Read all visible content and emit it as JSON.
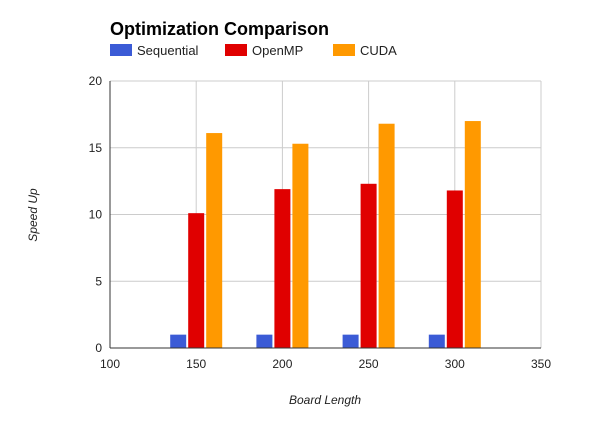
{
  "chart_data": {
    "type": "bar",
    "title": "Optimization Comparison",
    "xlabel": "Board Length",
    "ylabel": "Speed Up",
    "x": [
      150,
      200,
      250,
      300
    ],
    "xlim": [
      100,
      350
    ],
    "xticks": [
      100,
      150,
      200,
      250,
      300,
      350
    ],
    "ylim": [
      0,
      20
    ],
    "yticks": [
      0,
      5,
      10,
      15,
      20
    ],
    "grid": true,
    "legend_position": "top-left",
    "series": [
      {
        "name": "Sequential",
        "color": "#3b5bd6",
        "values": [
          1,
          1,
          1,
          1
        ]
      },
      {
        "name": "OpenMP",
        "color": "#e00000",
        "values": [
          10.1,
          11.9,
          12.3,
          11.8
        ]
      },
      {
        "name": "CUDA",
        "color": "#ff9900",
        "values": [
          16.1,
          15.3,
          16.8,
          17.0
        ]
      }
    ]
  }
}
